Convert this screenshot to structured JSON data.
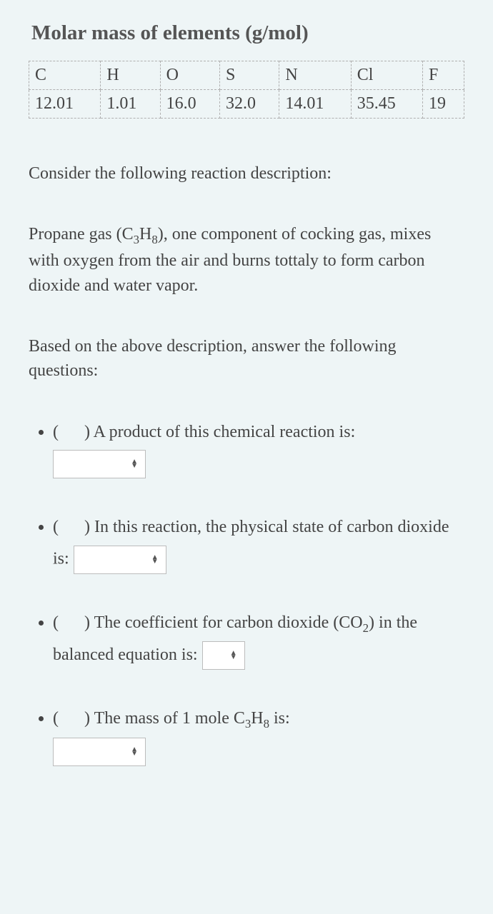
{
  "title": "Molar mass of elements (g/mol)",
  "table": {
    "headers": [
      "C",
      "H",
      "O",
      "S",
      "N",
      "Cl",
      "F"
    ],
    "values": [
      "12.01",
      "1.01",
      "16.0",
      "32.0",
      "14.01",
      "35.45",
      "19"
    ]
  },
  "intro": "Consider the following reaction description:",
  "description_pre": "Propane gas (C",
  "description_sub1": "3",
  "description_mid1": "H",
  "description_sub2": "8",
  "description_post": "), one component of cocking gas, mixes with oxygen from the air and burns tottaly to form carbon dioxide and water vapor.",
  "lead": "Based on the above description, answer the following questions:",
  "q1": {
    "text": "A product of this chemical reaction is:"
  },
  "q2": {
    "text_a": "In this reaction, the physical state of carbon dioxide is:"
  },
  "q3": {
    "text_a": "The coefficient for carbon dioxide (CO",
    "sub": "2",
    "text_b": ") in the balanced equation is:"
  },
  "q4": {
    "text_a": "The mass of 1 mole  C",
    "sub1": "3",
    "mid": "H",
    "sub2": "8",
    "text_b": " is:"
  },
  "colors": {
    "background": "#eef5f6",
    "text": "#444444",
    "title": "#555555",
    "border": "#b0b0b0",
    "input_bg": "#ffffff",
    "input_border": "#bcbcbc"
  },
  "fonts": {
    "title_size": 29,
    "body_size": 24,
    "family": "Georgia, serif"
  }
}
